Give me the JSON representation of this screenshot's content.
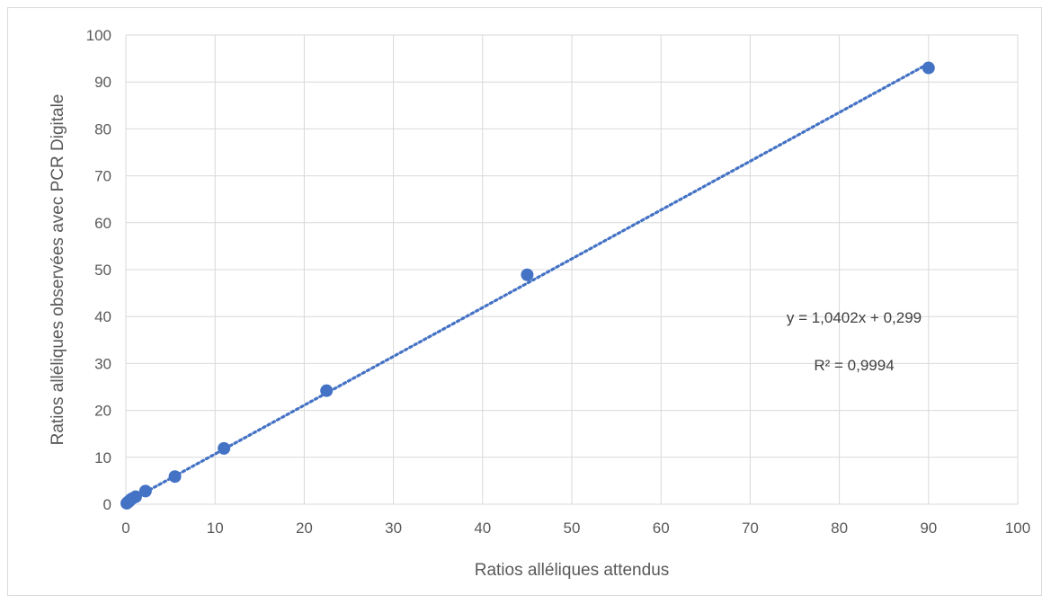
{
  "chart_data": {
    "type": "scatter",
    "xlabel": "Ratios alléliques attendus",
    "ylabel": "Ratios alléliques observées avec PCR Digitale",
    "xlim": [
      0,
      100
    ],
    "ylim": [
      0,
      100
    ],
    "x_ticks": [
      "0",
      "10",
      "20",
      "30",
      "40",
      "50",
      "60",
      "70",
      "80",
      "90",
      "100"
    ],
    "y_ticks": [
      "0",
      "10",
      "20",
      "30",
      "40",
      "50",
      "60",
      "70",
      "80",
      "90",
      "100"
    ],
    "grid": true,
    "colors": {
      "series": "#4472C4",
      "grid": "#d9d9d9",
      "text": "#595959"
    },
    "series": [
      {
        "x": [
          0.1,
          0.2,
          0.35,
          0.5,
          0.7,
          1.1,
          2.2,
          5.5,
          11,
          22.5,
          45,
          90
        ],
        "y": [
          0.2,
          0.4,
          0.6,
          0.9,
          1.2,
          1.6,
          2.8,
          5.9,
          11.9,
          24.2,
          48.9,
          93.0
        ]
      }
    ],
    "trendline": {
      "type": "linear",
      "style": "dotted",
      "slope": 1.0402,
      "intercept": 0.299,
      "x_range": [
        0,
        90
      ],
      "equation": "y = 1,0402x + 0,299",
      "r2": "R² = 0,9994"
    }
  }
}
